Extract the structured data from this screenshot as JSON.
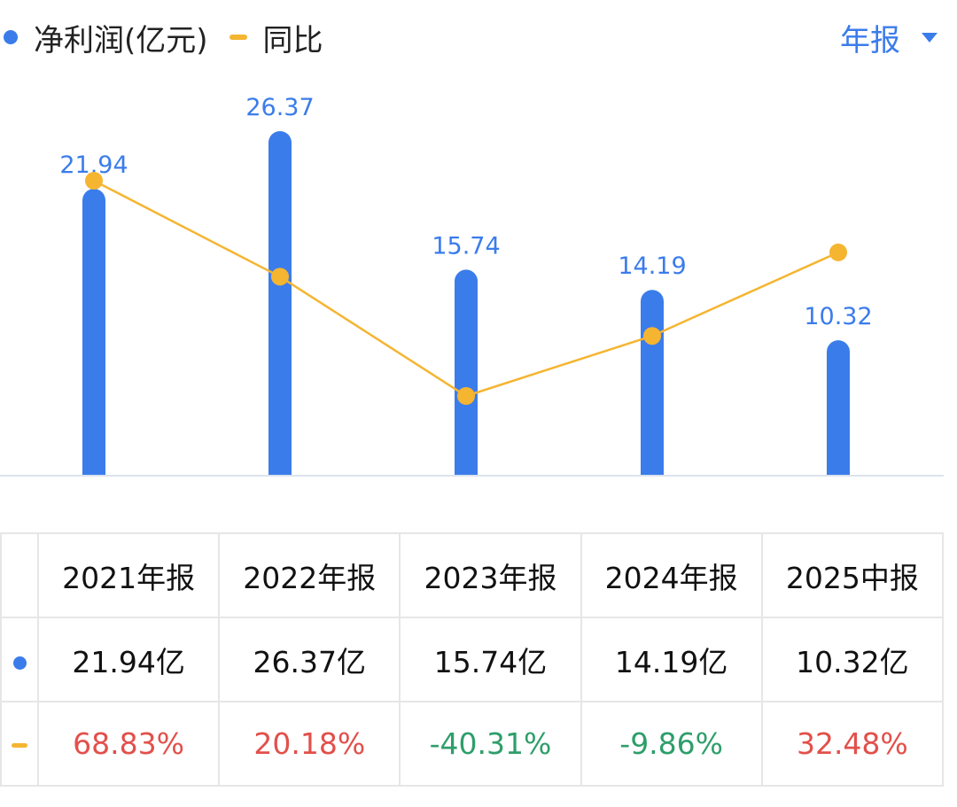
{
  "legend": {
    "net_profit_label": "净利润(亿元)",
    "yoy_label": "同比"
  },
  "period_selector": {
    "label": "年报"
  },
  "colors": {
    "bar": "#3B7CEB",
    "line": "#F5B531",
    "positive": "#E2504B",
    "negative": "#2E9E6A",
    "baseline": "#DCE3EE"
  },
  "chart_data": {
    "type": "bar",
    "categories": [
      "2021年报",
      "2022年报",
      "2023年报",
      "2024年报",
      "2025中报"
    ],
    "series": [
      {
        "name": "净利润(亿元)",
        "type": "bar",
        "values": [
          21.94,
          26.37,
          15.74,
          14.19,
          10.32
        ],
        "labels": [
          "21.94",
          "26.37",
          "15.74",
          "14.19",
          "10.32"
        ]
      },
      {
        "name": "同比",
        "type": "line",
        "values": [
          68.83,
          20.18,
          -40.31,
          -9.86,
          32.48
        ]
      }
    ],
    "bar_ylim": [
      0,
      26.37
    ],
    "line_ylim": [
      -40.31,
      68.83
    ],
    "grid": false,
    "legend_position": "top-left"
  },
  "table": {
    "headers": [
      "2021年报",
      "2022年报",
      "2023年报",
      "2024年报",
      "2025中报"
    ],
    "net_profit_row": [
      "21.94亿",
      "26.37亿",
      "15.74亿",
      "14.19亿",
      "10.32亿"
    ],
    "yoy_row": [
      "68.83%",
      "20.18%",
      "-40.31%",
      "-9.86%",
      "32.48%"
    ]
  }
}
